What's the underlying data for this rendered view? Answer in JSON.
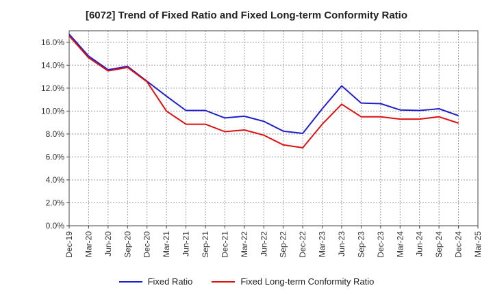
{
  "chart_data": {
    "type": "line",
    "title": "[6072]  Trend of Fixed Ratio and Fixed Long-term Conformity Ratio",
    "xlabel": "",
    "ylabel": "",
    "categories": [
      "Dec-19",
      "Mar-20",
      "Jun-20",
      "Sep-20",
      "Dec-20",
      "Mar-21",
      "Jun-21",
      "Sep-21",
      "Dec-21",
      "Mar-22",
      "Jun-22",
      "Sep-22",
      "Dec-22",
      "Mar-23",
      "Jun-23",
      "Sep-23",
      "Dec-23",
      "Mar-24",
      "Jun-24",
      "Sep-24",
      "Dec-24",
      "Mar-25"
    ],
    "yticks": [
      "0.0%",
      "2.0%",
      "4.0%",
      "6.0%",
      "8.0%",
      "10.0%",
      "12.0%",
      "14.0%",
      "16.0%"
    ],
    "ylim": [
      0,
      17
    ],
    "grid": true,
    "legend_position": "bottom",
    "series": [
      {
        "name": "Fixed Ratio",
        "color": "#1f1fcc",
        "values": [
          16.7,
          14.8,
          13.6,
          13.9,
          12.6,
          11.3,
          10.05,
          10.05,
          9.4,
          9.55,
          9.1,
          8.25,
          8.05,
          10.2,
          12.2,
          10.7,
          10.65,
          10.1,
          10.05,
          10.2,
          9.6,
          null
        ]
      },
      {
        "name": "Fixed Long-term Conformity Ratio",
        "color": "#dd1111",
        "values": [
          16.55,
          14.65,
          13.5,
          13.8,
          12.55,
          10.0,
          8.85,
          8.85,
          8.2,
          8.35,
          7.9,
          7.05,
          6.8,
          8.85,
          10.6,
          9.5,
          9.5,
          9.3,
          9.3,
          9.5,
          8.95,
          null
        ]
      }
    ]
  }
}
